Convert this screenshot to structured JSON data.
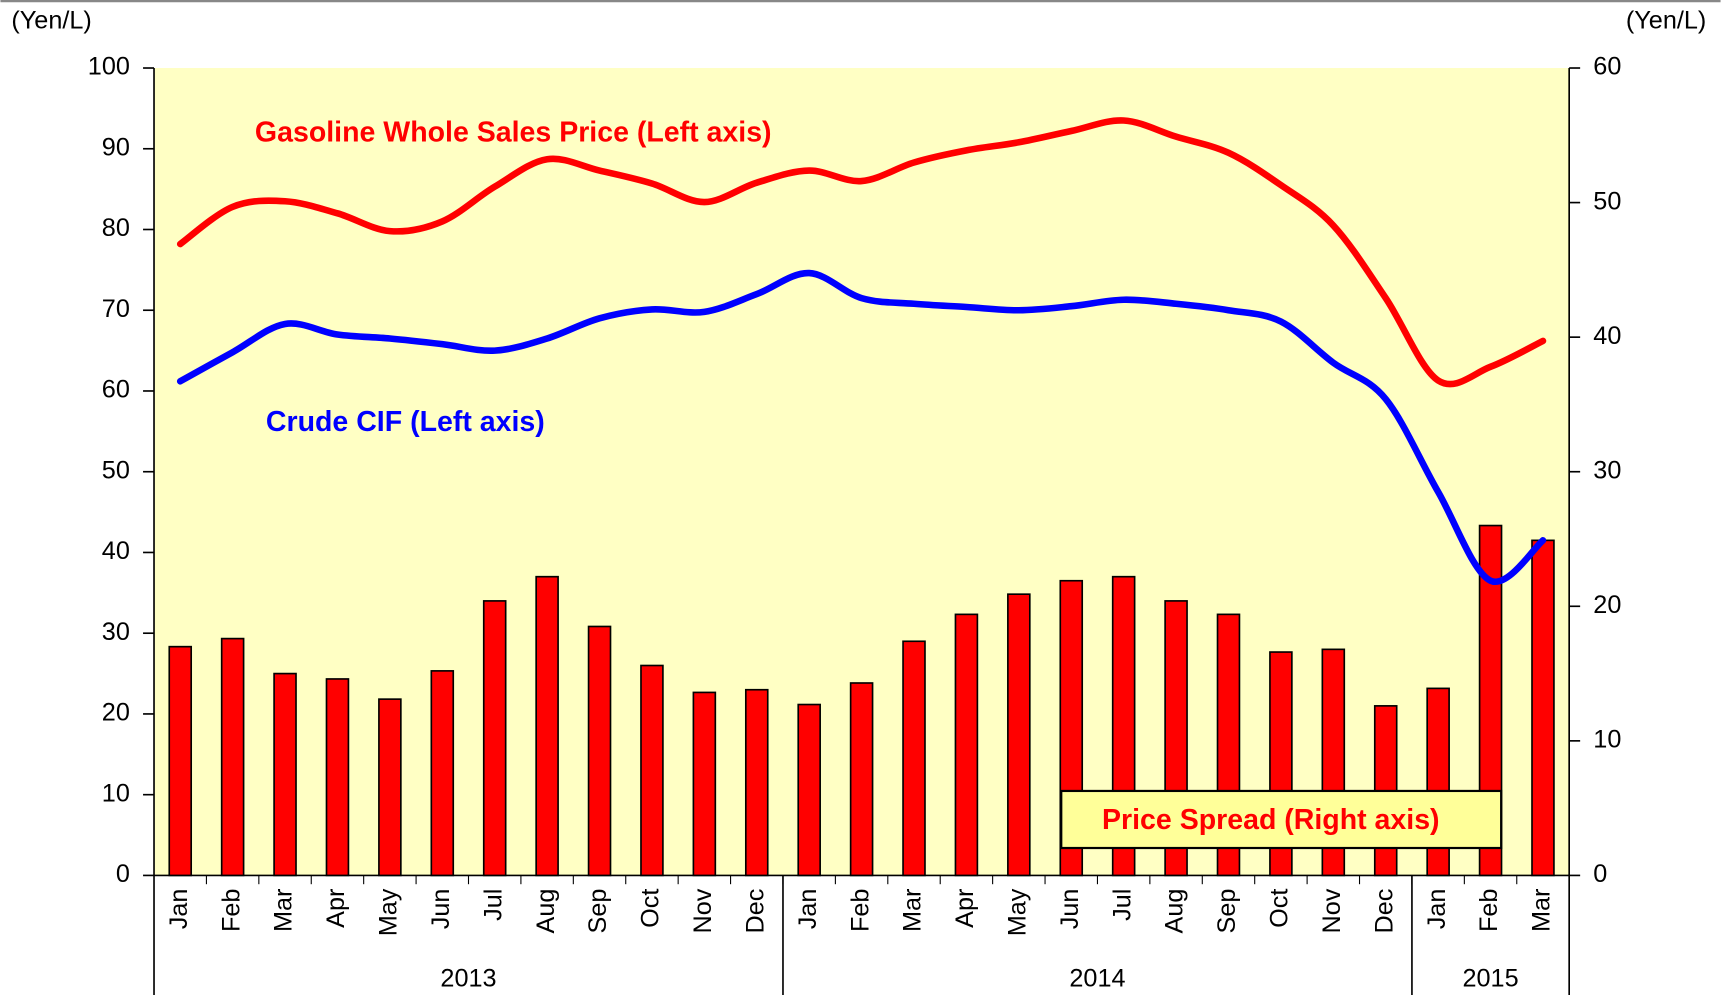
{
  "chart_data": {
    "type": "bar_line",
    "y_unit": "(Yen/L)",
    "y2_unit": "(Yen/L)",
    "categories": [
      "Jan",
      "Feb",
      "Mar",
      "Apr",
      "May",
      "Jun",
      "Jul",
      "Aug",
      "Sep",
      "Oct",
      "Nov",
      "Dec",
      "Jan",
      "Feb",
      "Mar",
      "Apr",
      "May",
      "Jun",
      "Jul",
      "Aug",
      "Sep",
      "Oct",
      "Nov",
      "Dec",
      "Jan",
      "Feb",
      "Mar"
    ],
    "category_groups": [
      {
        "label": "2013",
        "start": 0,
        "end": 11
      },
      {
        "label": "2014",
        "start": 12,
        "end": 23
      },
      {
        "label": "2015",
        "start": 24,
        "end": 26
      }
    ],
    "series": [
      {
        "name": "Gasoline Whole Sales Price (Left axis)",
        "kind": "line",
        "axis": "y",
        "color": "#ff0000",
        "values": [
          78.2,
          82.8,
          83.5,
          82,
          79.8,
          81,
          85.3,
          88.7,
          87.3,
          85.7,
          83.4,
          85.8,
          87.3,
          86,
          88.3,
          89.8,
          90.8,
          92.2,
          93.5,
          91.5,
          89.5,
          85.5,
          80.5,
          71.5,
          61.3,
          63,
          66.2
        ]
      },
      {
        "name": "Crude CIF (Left axis)",
        "kind": "line",
        "axis": "y",
        "color": "#0000ff",
        "values": [
          61.2,
          64.8,
          68.3,
          67,
          66.5,
          65.8,
          65,
          66.5,
          69,
          70.1,
          69.8,
          72,
          74.6,
          71.5,
          70.8,
          70.4,
          70,
          70.5,
          71.3,
          70.8,
          70,
          68.6,
          63.5,
          59,
          47.5,
          36.5,
          41.5
        ]
      },
      {
        "name": "Price Spread (Right axis)",
        "kind": "bar",
        "axis": "y2",
        "color": "#ff0000",
        "values": [
          17.0,
          17.6,
          15.0,
          14.6,
          13.1,
          15.2,
          20.4,
          22.2,
          18.5,
          15.6,
          13.6,
          13.8,
          12.7,
          14.3,
          17.4,
          19.4,
          20.9,
          21.9,
          22.2,
          20.4,
          19.4,
          16.6,
          16.8,
          12.6,
          13.9,
          26.0,
          24.9
        ]
      }
    ],
    "ylim": [
      0,
      100
    ],
    "yticks": [
      0,
      10,
      20,
      30,
      40,
      50,
      60,
      70,
      80,
      90,
      100
    ],
    "y2lim": [
      0,
      60
    ],
    "y2ticks": [
      0,
      10,
      20,
      30,
      40,
      50,
      60
    ],
    "plot_background": "#ffffc4"
  }
}
